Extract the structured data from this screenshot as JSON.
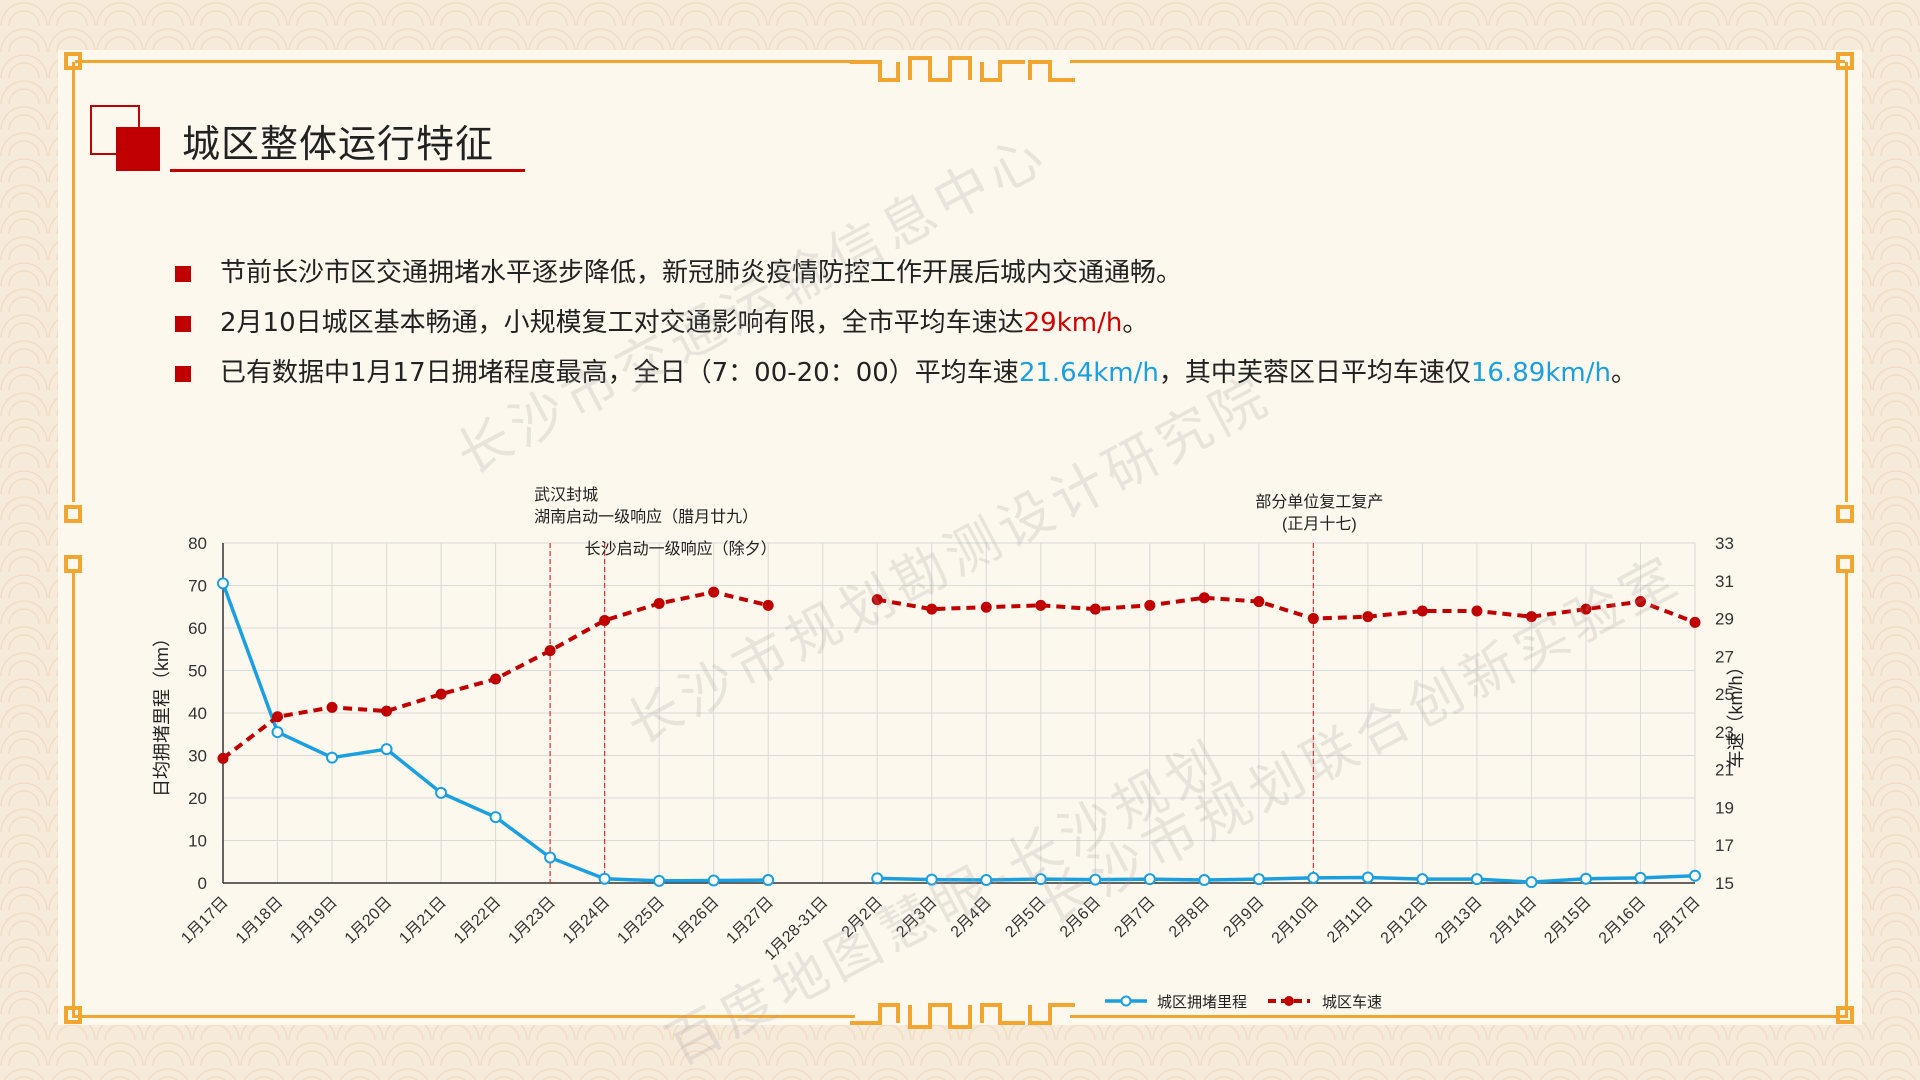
{
  "slide": {
    "title": "城区整体运行特征",
    "bullets": [
      {
        "parts": [
          {
            "text": "节前长沙市区交通拥堵水平逐步降低，新冠肺炎疫情防控工作开展后城内交通通畅。",
            "style": "normal"
          }
        ]
      },
      {
        "parts": [
          {
            "text": "2月10日城区基本畅通，小规模复工对交通影响有限，全市平均车速达",
            "style": "normal"
          },
          {
            "text": "29km/h",
            "style": "red"
          },
          {
            "text": "。",
            "style": "normal"
          }
        ]
      },
      {
        "parts": [
          {
            "text": "已有数据中1月17日拥堵程度最高，全日（7：00-20：00）平均车速",
            "style": "normal"
          },
          {
            "text": "21.64km/h",
            "style": "blue"
          },
          {
            "text": "，其中芙蓉区日平均车速仅",
            "style": "normal"
          },
          {
            "text": "16.89km/h",
            "style": "blue"
          },
          {
            "text": "。",
            "style": "normal"
          }
        ]
      }
    ],
    "watermarks": [
      "长沙市交通运输信息中心",
      "长沙市规划勘测设计研究院",
      "长沙市规划联合创新实验室",
      "百度地图慧眼-长沙规划"
    ],
    "colors": {
      "accent": "#c00000",
      "frame": "#f2a630",
      "blue_series": "#1aa0e0",
      "red_series": "#c00000"
    }
  },
  "chart_data": {
    "type": "line",
    "categories": [
      "1月17日",
      "1月18日",
      "1月19日",
      "1月20日",
      "1月21日",
      "1月22日",
      "1月23日",
      "1月24日",
      "1月25日",
      "1月26日",
      "1月27日",
      "1月28-31日",
      "2月2日",
      "2月3日",
      "2月4日",
      "2月5日",
      "2月6日",
      "2月7日",
      "2月8日",
      "2月9日",
      "2月10日",
      "2月11日",
      "2月12日",
      "2月13日",
      "2月14日",
      "2月15日",
      "2月16日",
      "2月17日"
    ],
    "series": [
      {
        "name": "城区拥堵里程",
        "axis": "left",
        "color": "#1aa0e0",
        "style": "solid-hollow-markers",
        "values": [
          70.5,
          35.5,
          29.5,
          31.5,
          21.2,
          15.5,
          6,
          1,
          0.5,
          0.6,
          0.7,
          null,
          1.1,
          0.8,
          0.7,
          0.9,
          0.8,
          0.9,
          0.7,
          0.9,
          1.2,
          1.3,
          0.9,
          0.9,
          0.2,
          1,
          1.2,
          1.7
        ]
      },
      {
        "name": "城区车速",
        "axis": "right",
        "color": "#c00000",
        "style": "dashed-filled-markers",
        "values": [
          21.6,
          23.8,
          24.3,
          24.1,
          25,
          25.8,
          27.3,
          28.9,
          29.8,
          30.4,
          29.7,
          null,
          30,
          29.5,
          29.6,
          29.7,
          29.5,
          29.7,
          30.1,
          29.9,
          29,
          29.1,
          29.4,
          29.4,
          29.1,
          29.5,
          29.9,
          28.8
        ]
      }
    ],
    "ylabel": "日均拥堵里程（km）",
    "ylim": [
      0,
      80
    ],
    "yticks": [
      0,
      10,
      20,
      30,
      40,
      50,
      60,
      70,
      80
    ],
    "y2label": "车速（km/h）",
    "y2lim": [
      15,
      33
    ],
    "y2ticks": [
      15,
      17,
      19,
      21,
      23,
      25,
      27,
      29,
      31,
      33
    ],
    "grid": true,
    "legend_position": "bottom-right",
    "annotations": [
      {
        "category": "1月23日",
        "lines": [
          "武汉封城",
          "湖南启动一级响应（腊月廿九）"
        ]
      },
      {
        "category": "1月24日",
        "lines": [
          "长沙启动一级响应（除夕）"
        ]
      },
      {
        "category": "2月10日",
        "lines": [
          "部分单位复工复产",
          "(正月十七)"
        ]
      }
    ]
  }
}
